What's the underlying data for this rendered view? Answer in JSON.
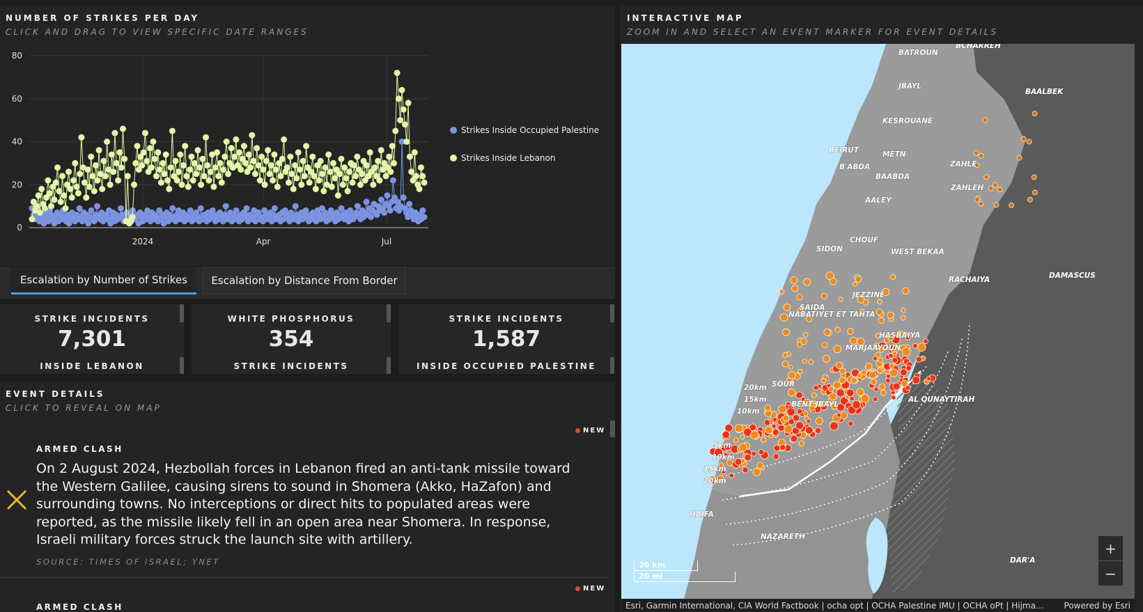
{
  "chart_panel": {
    "title": "NUMBER OF STRIKES PER DAY",
    "subtitle": "CLICK AND DRAG TO VIEW SPECIFIC DATE RANGES"
  },
  "chart_data": {
    "type": "line",
    "x_tick_labels": [
      "2024",
      "Apr",
      "Jul"
    ],
    "y_tick_labels": [
      "0",
      "20",
      "40",
      "60",
      "80"
    ],
    "ylim": [
      0,
      80
    ],
    "x_range": [
      "2023-10-08",
      "2024-08-02"
    ],
    "grid": true,
    "legend_position": "right",
    "series": [
      {
        "name": "Strikes Inside Occupied Palestine",
        "color": "#7b93e0",
        "values": [
          9,
          6,
          4,
          5,
          8,
          3,
          6,
          4,
          2,
          7,
          5,
          3,
          8,
          6,
          4,
          2,
          5,
          7,
          3,
          6,
          4,
          8,
          5,
          3,
          6,
          2,
          4,
          7,
          5,
          3,
          6,
          4,
          9,
          5,
          3,
          7,
          4,
          6,
          2,
          5,
          8,
          4,
          3,
          6,
          10,
          5,
          4,
          7,
          3,
          5,
          6,
          4,
          8,
          2,
          5,
          7,
          3,
          6,
          4,
          5,
          9,
          6,
          3,
          5,
          7,
          4,
          6,
          3,
          8,
          5,
          4,
          6,
          2,
          7,
          5,
          3,
          6,
          4,
          8,
          5,
          3,
          7,
          4,
          6,
          5,
          3,
          8,
          4,
          6,
          2,
          5,
          7,
          3,
          6,
          4,
          9,
          5,
          3,
          6,
          8,
          4,
          5,
          7,
          3,
          6,
          4,
          5,
          8,
          3,
          6,
          4,
          7,
          5,
          3,
          9,
          4,
          6,
          5,
          3,
          7,
          4,
          6,
          8,
          5,
          3,
          6,
          4,
          7,
          5,
          3,
          6,
          10,
          4,
          5,
          7,
          3,
          6,
          4,
          8,
          5,
          3,
          6,
          4,
          7,
          5,
          9,
          3,
          6,
          4,
          5,
          8,
          3,
          6,
          7,
          4,
          5,
          3,
          8,
          6,
          4,
          5,
          7,
          3,
          6,
          9,
          4,
          5,
          6,
          3,
          7,
          4,
          8,
          5,
          6,
          3,
          7,
          5,
          4,
          10,
          6,
          3,
          5,
          7,
          4,
          6,
          8,
          5,
          3,
          6,
          4,
          7,
          5,
          3,
          8,
          6,
          4,
          9,
          5,
          7,
          3,
          6,
          4,
          8,
          5,
          6,
          3,
          7,
          4,
          5,
          9,
          6,
          4,
          7,
          5,
          3,
          8,
          6,
          4,
          5,
          7,
          10,
          6,
          4,
          8,
          5,
          7,
          12,
          6,
          9,
          5,
          8,
          11,
          7,
          6,
          10,
          8,
          13,
          9,
          7,
          11,
          15,
          10,
          8,
          12,
          22,
          14,
          9,
          12,
          8,
          10,
          40,
          14,
          9,
          7,
          5,
          11,
          8,
          6,
          4,
          7,
          5,
          3,
          6,
          4,
          8,
          5
        ],
        "note_scale": "daily"
      },
      {
        "name": "Strikes Inside Lebanon",
        "color": "#e4f5a8",
        "values": [
          4,
          12,
          8,
          10,
          15,
          7,
          18,
          11,
          9,
          14,
          22,
          16,
          10,
          19,
          13,
          21,
          28,
          17,
          12,
          24,
          15,
          9,
          20,
          26,
          18,
          14,
          22,
          30,
          19,
          16,
          25,
          42,
          28,
          21,
          14,
          27,
          19,
          33,
          24,
          17,
          29,
          22,
          36,
          25,
          18,
          31,
          24,
          40,
          27,
          20,
          34,
          26,
          44,
          30,
          22,
          35,
          28,
          46,
          32,
          3,
          24,
          2,
          3,
          5,
          20,
          30,
          38,
          27,
          33,
          29,
          35,
          44,
          31,
          26,
          37,
          28,
          40,
          32,
          24,
          35,
          27,
          21,
          30,
          25,
          34,
          22,
          18,
          28,
          45,
          24,
          31,
          22,
          26,
          34,
          20,
          29,
          38,
          24,
          19,
          27,
          33,
          22,
          30,
          25,
          36,
          28,
          20,
          32,
          24,
          42,
          29,
          22,
          26,
          34,
          19,
          28,
          35,
          24,
          30,
          21,
          27,
          33,
          40,
          25,
          30,
          37,
          28,
          33,
          41,
          29,
          35,
          27,
          32,
          38,
          30,
          26,
          34,
          28,
          43,
          31,
          25,
          37,
          29,
          22,
          33,
          27,
          20,
          31,
          36,
          25,
          29,
          22,
          34,
          27,
          19,
          30,
          24,
          32,
          41,
          26,
          28,
          21,
          33,
          25,
          18,
          29,
          23,
          35,
          27,
          20,
          31,
          24,
          38,
          28,
          21,
          26,
          33,
          24,
          18,
          29,
          22,
          31,
          25,
          17,
          28,
          20,
          34,
          26,
          19,
          30,
          23,
          27,
          15,
          25,
          32,
          20,
          28,
          23,
          17,
          26,
          30,
          21,
          29,
          24,
          33,
          27,
          20,
          25,
          31,
          22,
          29,
          24,
          35,
          26,
          20,
          28,
          24,
          31,
          22,
          36,
          27,
          30,
          24,
          28,
          33,
          26,
          38,
          30,
          45,
          72,
          60,
          50,
          64,
          55,
          48,
          40,
          58,
          33,
          26,
          22,
          35,
          24,
          20,
          18,
          28,
          24,
          21
        ],
        "note_scale": "daily"
      }
    ]
  },
  "tabs": [
    {
      "label": "Escalation by Number of Strikes",
      "active": true
    },
    {
      "label": "Escalation by Distance From Border",
      "active": false
    }
  ],
  "stats": [
    {
      "top": "STRIKE INCIDENTS",
      "value": "7,301",
      "bottom": "INSIDE LEBANON"
    },
    {
      "top": "WHITE PHOSPHORUS",
      "value": "354",
      "bottom": "STRIKE INCIDENTS"
    },
    {
      "top": "STRIKE INCIDENTS",
      "value": "1,587",
      "bottom": "INSIDE OCCUPIED PALESTINE"
    }
  ],
  "events_panel": {
    "title": "EVENT DETAILS",
    "subtitle": "CLICK TO REVEAL ON MAP"
  },
  "events": [
    {
      "badge": "NEW",
      "type": "ARMED CLASH",
      "text": "On 2 August 2024, Hezbollah forces in Lebanon fired an anti-tank missile toward the Western Galilee, causing sirens to sound in Shomera (Akko, HaZafon) and surrounding towns. No interceptions or direct hits to populated areas were reported, as the missile likely fell in an open area near Shomera. In response, Israeli military forces struck the launch site with artillery.",
      "source": "SOURCE: TIMES OF ISRAEL; YNET",
      "icon": "close-x-icon",
      "icon_color": "#e8b830"
    },
    {
      "badge": "NEW",
      "type": "ARMED CLASH"
    }
  ],
  "map_panel": {
    "title": "INTERACTIVE MAP",
    "subtitle": "ZOOM IN AND SELECT AN EVENT MARKER FOR EVENT DETAILS",
    "place_labels": [
      "BATROUN",
      "BCHARREH",
      "JBAYL",
      "BAALBEK",
      "KESROUANE",
      "BEIRUT",
      "METN",
      "ZAHLE",
      "B'ABDA",
      "BAABDA",
      "ZAHLEH",
      "AALEY",
      "CHOUF",
      "SIDON",
      "WEST BEKAA",
      "DAMASCUS",
      "RACHAIYA",
      "JEZZINE",
      "SAIDA",
      "NABATIYET ET TAHTA",
      "HASBAIYA",
      "MARJAAYOUN",
      "SOUR",
      "BENT JBAYL",
      "AL QUNAYTIRAH",
      "HAIFA",
      "NAZARETH",
      "DAR'A"
    ],
    "ring_labels": [
      "20km",
      "15km",
      "10km",
      "5km",
      "10km",
      "15km",
      "20km"
    ],
    "scale_km": "20 km",
    "scale_mi": "20 mi",
    "zoom_in": "+",
    "zoom_out": "−",
    "attribution": "Esri, Garmin International, CIA World Factbook | ocha opt | OCHA Palestine IMU | OCHA oPt | Hijma…",
    "powered_by": "Powered by Esri"
  }
}
